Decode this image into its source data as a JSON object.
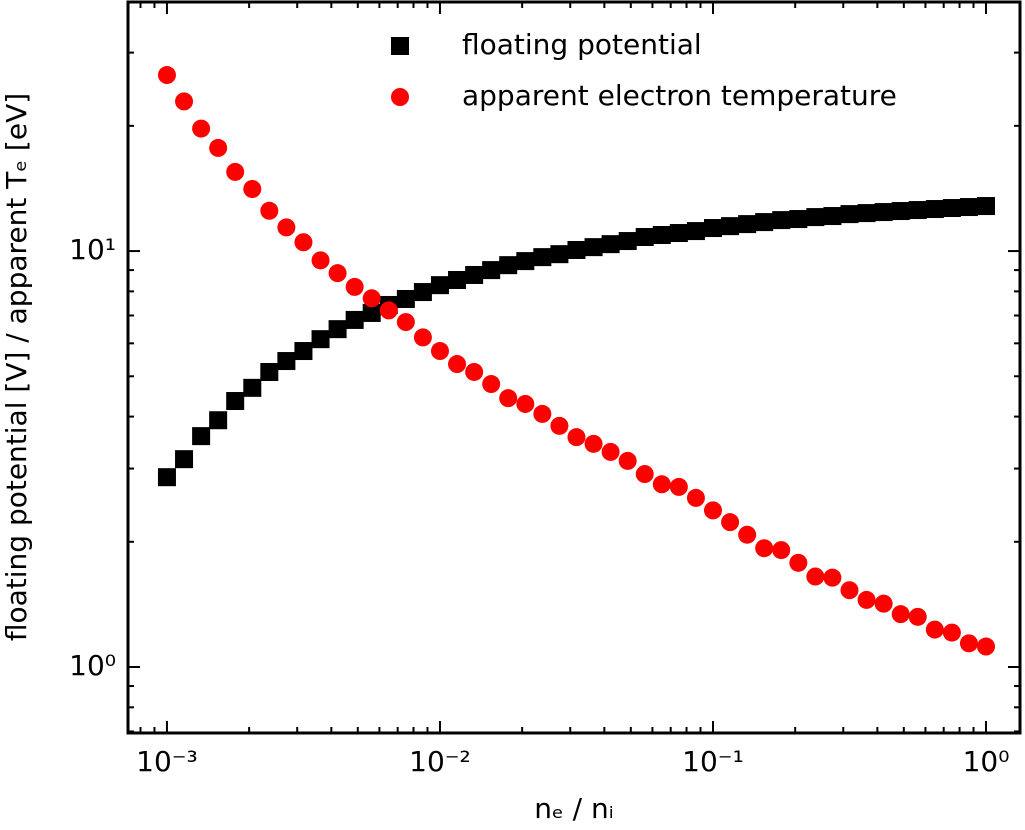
{
  "chart_data": {
    "type": "scatter",
    "xlabel": "nₑ / nᵢ",
    "ylabel": "floating potential [V] / apparent Tₑ [eV]",
    "xscale": "log",
    "yscale": "log",
    "legend": "upper center",
    "tick_direction": "in",
    "x": [
      0.001,
      0.001155,
      0.001334,
      0.00154,
      0.001778,
      0.002054,
      0.002371,
      0.002738,
      0.003162,
      0.003652,
      0.004217,
      0.00487,
      0.005623,
      0.006494,
      0.007499,
      0.00866,
      0.01,
      0.01155,
      0.01334,
      0.0154,
      0.01778,
      0.02054,
      0.02371,
      0.02738,
      0.03162,
      0.03652,
      0.04217,
      0.0487,
      0.05623,
      0.06494,
      0.07499,
      0.0866,
      0.1,
      0.1155,
      0.1334,
      0.154,
      0.1778,
      0.2054,
      0.2371,
      0.2738,
      0.3162,
      0.3652,
      0.4217,
      0.487,
      0.5623,
      0.6494,
      0.7499,
      0.866,
      1
    ],
    "series": [
      {
        "name": "floating potential",
        "color": "#000000",
        "marker": "square",
        "values": [
          2.86,
          3.16,
          3.59,
          3.92,
          4.36,
          4.69,
          5.12,
          5.44,
          5.75,
          6.14,
          6.49,
          6.83,
          7.1,
          7.42,
          7.67,
          7.97,
          8.28,
          8.52,
          8.76,
          9.0,
          9.25,
          9.46,
          9.67,
          9.83,
          10.06,
          10.22,
          10.39,
          10.57,
          10.81,
          10.93,
          11.05,
          11.17,
          11.36,
          11.48,
          11.61,
          11.74,
          11.87,
          11.94,
          12.07,
          12.14,
          12.27,
          12.34,
          12.41,
          12.48,
          12.55,
          12.62,
          12.69,
          12.76,
          12.83
        ]
      },
      {
        "name": "apparent electron temperature",
        "color": "#ff0000",
        "marker": "circle",
        "values": [
          26.5,
          22.9,
          19.7,
          17.7,
          15.5,
          14.1,
          12.5,
          11.4,
          10.5,
          9.5,
          8.85,
          8.2,
          7.7,
          7.2,
          6.75,
          6.2,
          5.75,
          5.35,
          5.12,
          4.79,
          4.43,
          4.29,
          4.06,
          3.8,
          3.57,
          3.44,
          3.29,
          3.13,
          2.91,
          2.75,
          2.71,
          2.55,
          2.38,
          2.23,
          2.08,
          1.93,
          1.91,
          1.78,
          1.65,
          1.64,
          1.53,
          1.45,
          1.42,
          1.34,
          1.32,
          1.23,
          1.21,
          1.14,
          1.12
        ]
      }
    ],
    "xlim": [
      0.00072,
      1.332
    ],
    "ylim": [
      0.694,
      39.7
    ],
    "xticks": [
      {
        "value": 0.001,
        "label": "10⁻³"
      },
      {
        "value": 0.01,
        "label": "10⁻²"
      },
      {
        "value": 0.1,
        "label": "10⁻¹"
      },
      {
        "value": 1,
        "label": "10⁰"
      }
    ],
    "yticks": [
      {
        "value": 1,
        "label": "10⁰"
      },
      {
        "value": 10,
        "label": "10¹"
      }
    ],
    "xminorticks": [
      0.0008,
      0.0009,
      0.002,
      0.003,
      0.004,
      0.005,
      0.006,
      0.007,
      0.008,
      0.009,
      0.02,
      0.03,
      0.04,
      0.05,
      0.06,
      0.07,
      0.08,
      0.09,
      0.2,
      0.3,
      0.4,
      0.5,
      0.6,
      0.7,
      0.8,
      0.9
    ],
    "yminorticks": [
      0.7,
      0.8,
      0.9,
      2,
      3,
      4,
      5,
      6,
      7,
      8,
      9,
      20,
      30
    ]
  }
}
